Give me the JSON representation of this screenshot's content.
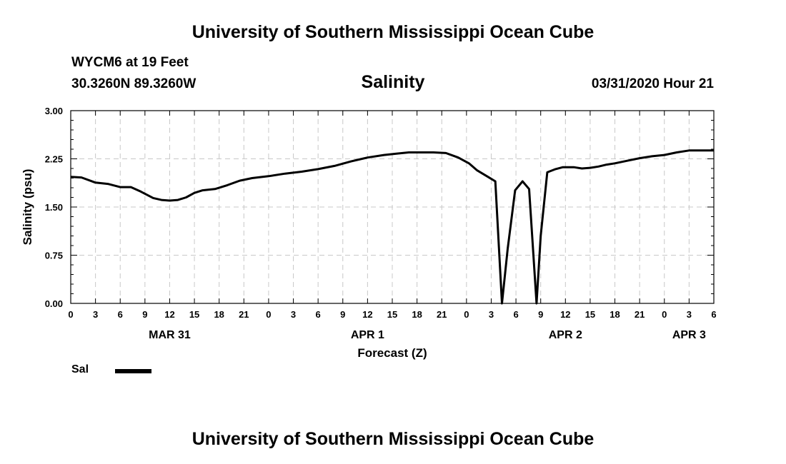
{
  "header": {
    "title": "University of Southern Mississippi Ocean Cube",
    "station": "WYCM6 at 19 Feet",
    "coords": "30.3260N 89.3260W",
    "variable": "Salinity",
    "datetime": "03/31/2020 Hour 21"
  },
  "footer": {
    "title": "University of Southern Mississippi Ocean Cube"
  },
  "legend": {
    "label": "Sal",
    "color": "#000000"
  },
  "chart_data": {
    "type": "line",
    "title": "Salinity",
    "xlabel": "Forecast (Z)",
    "ylabel": "Salinity (psu)",
    "x_unit": "hours from 03/31/2020 00Z",
    "xlim": [
      0,
      78
    ],
    "ylim": [
      0,
      3
    ],
    "grid": true,
    "legend_position": "bottom-left",
    "yticks": [
      0.0,
      0.75,
      1.5,
      2.25,
      3.0
    ],
    "ytick_labels": [
      "0.00",
      "0.75",
      "1.50",
      "2.25",
      "3.00"
    ],
    "xticks": [
      0,
      3,
      6,
      9,
      12,
      15,
      18,
      21,
      24,
      27,
      30,
      33,
      36,
      39,
      42,
      45,
      48,
      51,
      54,
      57,
      60,
      63,
      66,
      69,
      72,
      75,
      78
    ],
    "xtick_labels": [
      "0",
      "3",
      "6",
      "9",
      "12",
      "15",
      "18",
      "21",
      "0",
      "3",
      "6",
      "9",
      "12",
      "15",
      "18",
      "21",
      "0",
      "3",
      "6",
      "9",
      "12",
      "15",
      "18",
      "21",
      "0",
      "3",
      "6"
    ],
    "date_labels": [
      {
        "x": 12,
        "label": "MAR 31"
      },
      {
        "x": 36,
        "label": "APR 1"
      },
      {
        "x": 60,
        "label": "APR 2"
      },
      {
        "x": 75,
        "label": "APR 3"
      }
    ],
    "series": [
      {
        "name": "Sal",
        "color": "#000000",
        "x": [
          0,
          1.3,
          3,
          4.5,
          6,
          7.3,
          8.5,
          10,
          11,
          12,
          13,
          14,
          15,
          16,
          17.5,
          19,
          20.5,
          22,
          24,
          26,
          28,
          30,
          32,
          34,
          36,
          38,
          39.5,
          41,
          42.5,
          44,
          45.5,
          47,
          48.3,
          49.3,
          50.6,
          51.5,
          52.3,
          53,
          53.9,
          54.8,
          55.6,
          56.5,
          57,
          57.8,
          58.8,
          59.7,
          61,
          62,
          63,
          64,
          65,
          66,
          67.5,
          69,
          70.5,
          72,
          73.5,
          75,
          76.5,
          78
        ],
        "y": [
          1.97,
          1.96,
          1.88,
          1.86,
          1.81,
          1.81,
          1.74,
          1.64,
          1.61,
          1.6,
          1.61,
          1.65,
          1.72,
          1.76,
          1.78,
          1.84,
          1.91,
          1.95,
          1.98,
          2.02,
          2.05,
          2.09,
          2.14,
          2.21,
          2.27,
          2.31,
          2.33,
          2.35,
          2.35,
          2.35,
          2.34,
          2.27,
          2.18,
          2.07,
          1.97,
          1.9,
          0.0,
          0.85,
          1.76,
          1.9,
          1.78,
          0.0,
          1.05,
          2.04,
          2.09,
          2.12,
          2.12,
          2.1,
          2.11,
          2.13,
          2.16,
          2.18,
          2.22,
          2.26,
          2.29,
          2.31,
          2.35,
          2.38,
          2.38,
          2.38
        ]
      }
    ]
  }
}
